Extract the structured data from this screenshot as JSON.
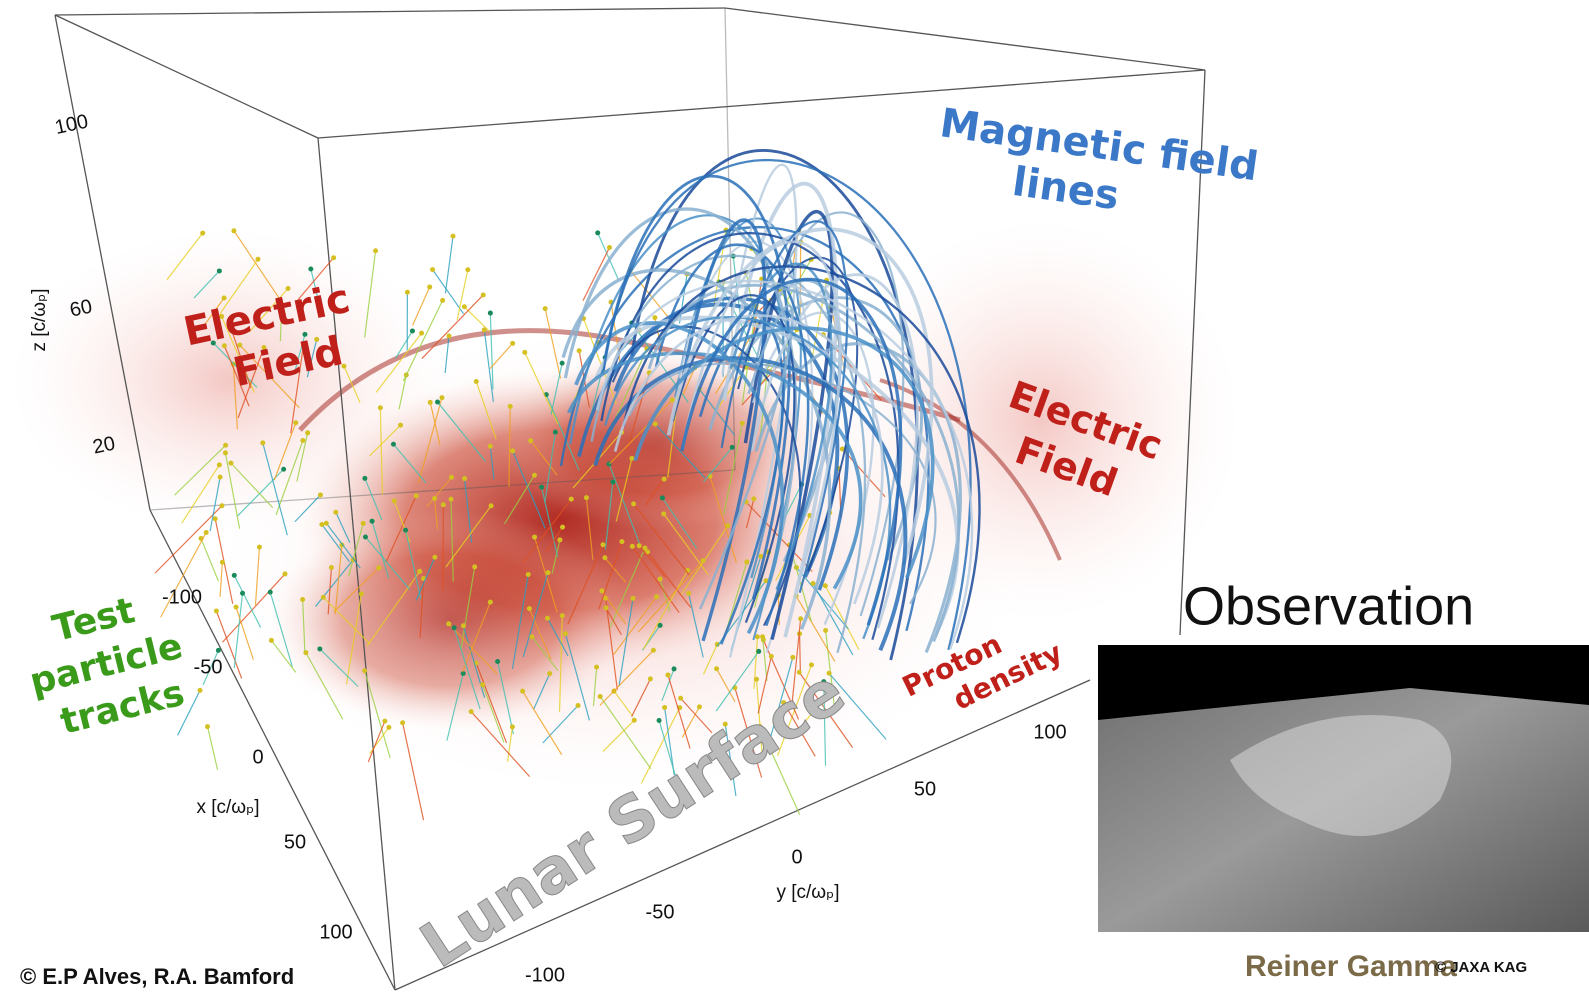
{
  "axes": {
    "z": {
      "label": "z [c/ωₚ]",
      "ticks": [
        "100",
        "60",
        "20"
      ]
    },
    "x": {
      "label": "x [c/ωₚ]",
      "ticks": [
        "-100",
        "-50",
        "0",
        "50",
        "100"
      ]
    },
    "y": {
      "label": "y [c/ωₚ]",
      "ticks": [
        "100",
        "50",
        "0",
        "-50",
        "-100"
      ]
    }
  },
  "annotations": {
    "magnetic_field_lines": [
      "Magnetic field",
      "lines"
    ],
    "electric_field_left": [
      "Electric",
      "Field"
    ],
    "electric_field_right": [
      "Electric",
      "Field"
    ],
    "test_particle_tracks": [
      "Test",
      "particle",
      "tracks"
    ],
    "proton_density": [
      "Proton",
      "density"
    ],
    "lunar_surface": "Lunar Surface"
  },
  "credit": "© E.P Alves, R.A. Bamford",
  "observation": {
    "title": "Observation",
    "caption": "Reiner Gamma",
    "credit": "© JAXA KAG"
  }
}
